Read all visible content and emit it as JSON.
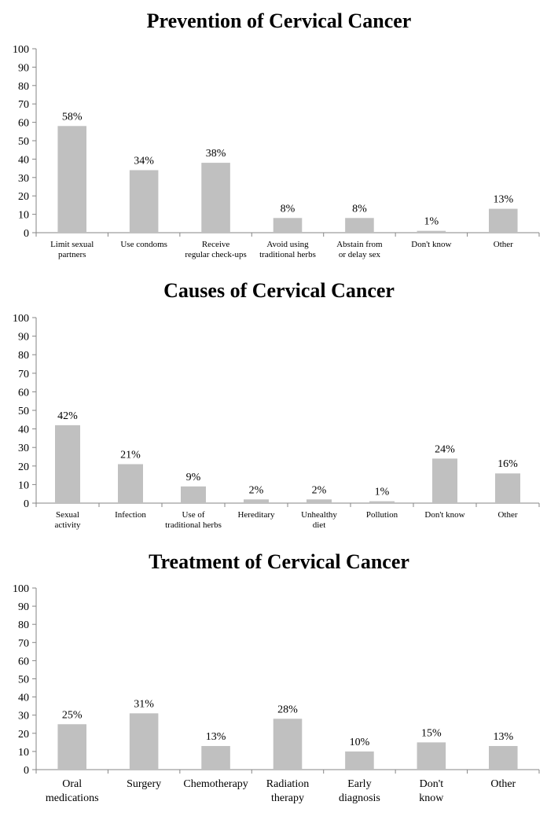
{
  "chart_data": [
    {
      "type": "bar",
      "title": "Prevention of Cervical Cancer",
      "categories": [
        [
          "Limit sexual",
          "partners"
        ],
        [
          "Use condoms"
        ],
        [
          "Receive",
          "regular check-ups"
        ],
        [
          "Avoid using",
          "traditional herbs"
        ],
        [
          "Abstain from",
          "or delay sex"
        ],
        [
          "Don't know"
        ],
        [
          "Other"
        ]
      ],
      "values": [
        58,
        34,
        38,
        8,
        8,
        1,
        13
      ],
      "data_labels": [
        "58%",
        "34%",
        "38%",
        "8%",
        "8%",
        "1%",
        "13%"
      ],
      "ylim": [
        0,
        100
      ],
      "yticks": [
        0,
        10,
        20,
        30,
        40,
        50,
        60,
        70,
        80,
        90,
        100
      ],
      "xlabel": "",
      "ylabel": "",
      "grid": false,
      "bar_color": "#c0c0c0",
      "axis_color": "#868686"
    },
    {
      "type": "bar",
      "title": "Causes of Cervical Cancer",
      "categories": [
        [
          "Sexual",
          "activity"
        ],
        [
          "Infection"
        ],
        [
          "Use of",
          "traditional herbs"
        ],
        [
          "Hereditary"
        ],
        [
          "Unhealthy",
          "diet"
        ],
        [
          "Pollution"
        ],
        [
          "Don't know"
        ],
        [
          "Other"
        ]
      ],
      "values": [
        42,
        21,
        9,
        2,
        2,
        1,
        24,
        16
      ],
      "data_labels": [
        "42%",
        "21%",
        "9%",
        "2%",
        "2%",
        "1%",
        "24%",
        "16%"
      ],
      "ylim": [
        0,
        100
      ],
      "yticks": [
        0,
        10,
        20,
        30,
        40,
        50,
        60,
        70,
        80,
        90,
        100
      ],
      "xlabel": "",
      "ylabel": "",
      "grid": false,
      "bar_color": "#c0c0c0",
      "axis_color": "#868686"
    },
    {
      "type": "bar",
      "title": "Treatment of Cervical Cancer",
      "categories": [
        [
          "Oral",
          "medications"
        ],
        [
          "Surgery"
        ],
        [
          "Chemotherapy"
        ],
        [
          "Radiation",
          "therapy"
        ],
        [
          "Early",
          "diagnosis"
        ],
        [
          "Don't",
          "know"
        ],
        [
          "Other"
        ]
      ],
      "values": [
        25,
        31,
        13,
        28,
        10,
        15,
        13
      ],
      "data_labels": [
        "25%",
        "31%",
        "13%",
        "28%",
        "10%",
        "15%",
        "13%"
      ],
      "ylim": [
        0,
        100
      ],
      "yticks": [
        0,
        10,
        20,
        30,
        40,
        50,
        60,
        70,
        80,
        90,
        100
      ],
      "xlabel": "",
      "ylabel": "",
      "grid": false,
      "bar_color": "#c0c0c0",
      "axis_color": "#868686"
    }
  ]
}
